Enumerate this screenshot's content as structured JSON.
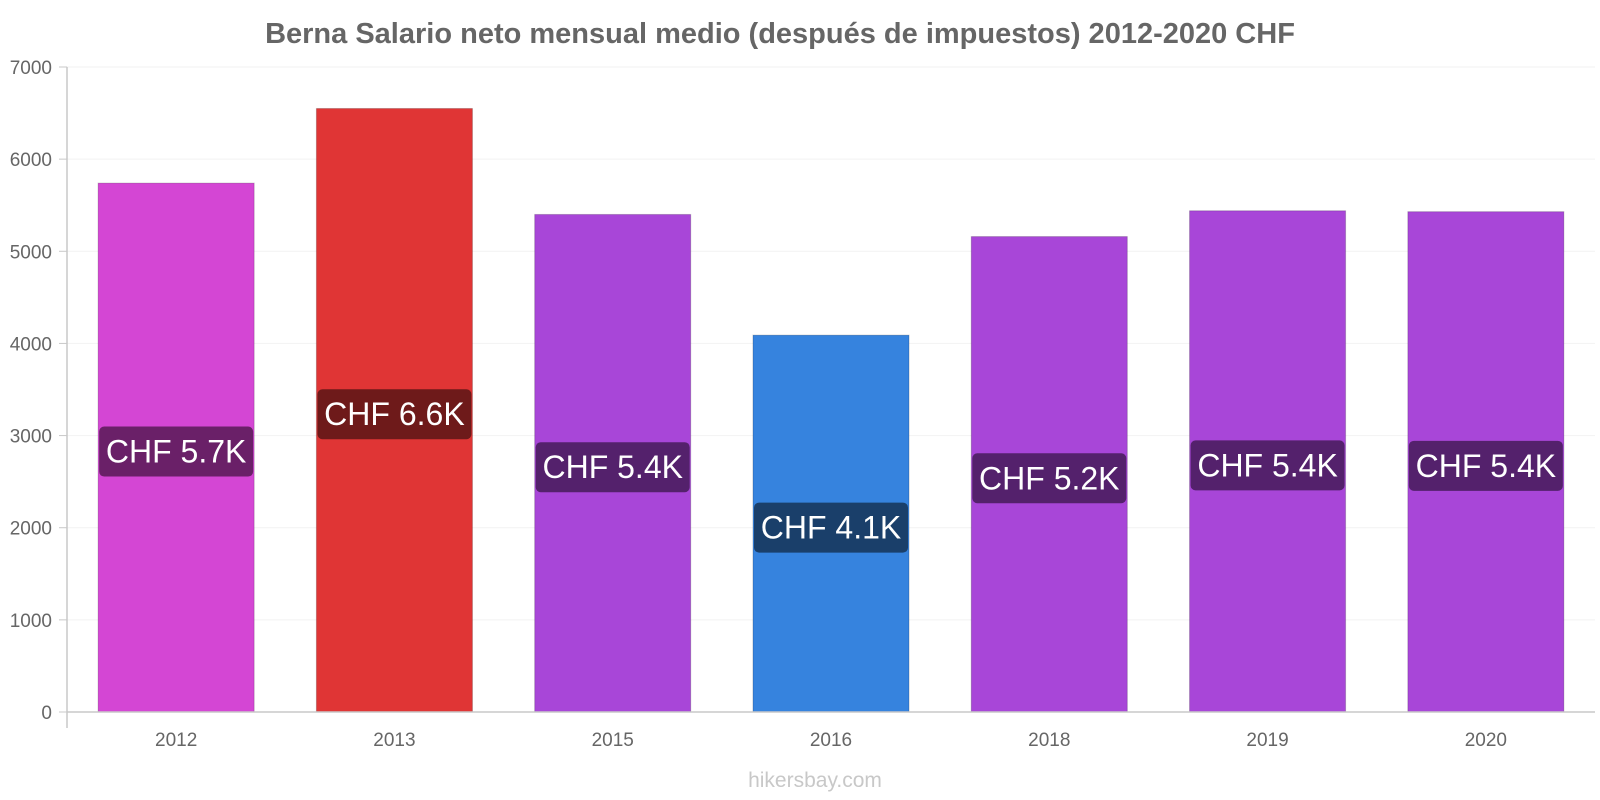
{
  "chart_data": {
    "type": "bar",
    "title": "Berna Salario neto mensual medio (después de impuestos) 2012-2020 CHF",
    "xlabel": "",
    "ylabel": "",
    "categories": [
      "2012",
      "2013",
      "2015",
      "2016",
      "2018",
      "2019",
      "2020"
    ],
    "values": [
      5740,
      6550,
      5400,
      4090,
      5160,
      5440,
      5430
    ],
    "data_labels": [
      "CHF 5.7K",
      "CHF 6.6K",
      "CHF 5.4K",
      "CHF 4.1K",
      "CHF 5.2K",
      "CHF 5.4K",
      "CHF 5.4K"
    ],
    "bar_colors": [
      "#d446d4",
      "#e03535",
      "#a846d8",
      "#3683de",
      "#a846d8",
      "#a846d8",
      "#a846d8"
    ],
    "label_bg_colors": [
      "#6a2068",
      "#6e1a1a",
      "#54216c",
      "#1a3f6a",
      "#54216c",
      "#54216c",
      "#54216c"
    ],
    "ylim": [
      0,
      7000
    ],
    "yticks": [
      0,
      1000,
      2000,
      3000,
      4000,
      5000,
      6000,
      7000
    ],
    "grid": true,
    "legend": "none"
  },
  "watermark": "hikersbay.com"
}
